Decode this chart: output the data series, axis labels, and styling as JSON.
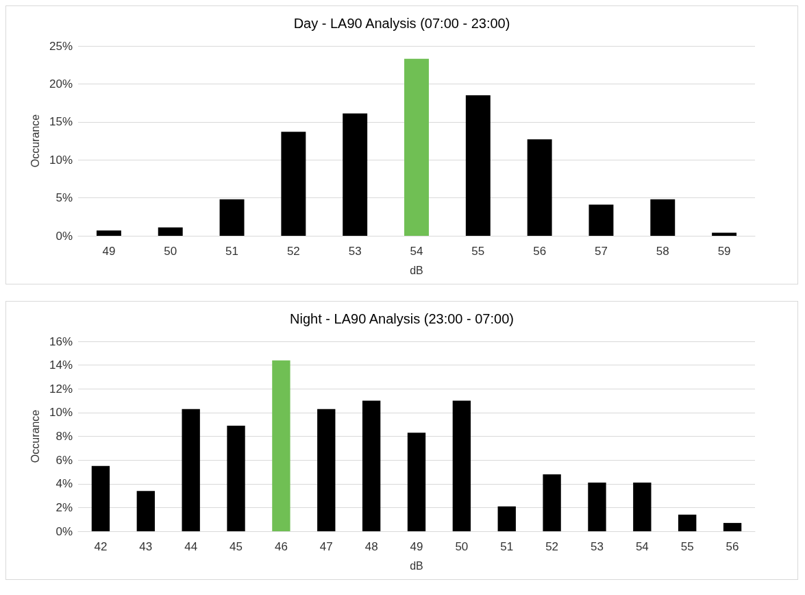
{
  "chart_data": [
    {
      "type": "bar",
      "title": "Day - LA90 Analysis (07:00 - 23:00)",
      "xlabel": "dB",
      "ylabel": "Occurance",
      "categories": [
        "49",
        "50",
        "51",
        "52",
        "53",
        "54",
        "55",
        "56",
        "57",
        "58",
        "59"
      ],
      "values": [
        0.7,
        1.1,
        4.8,
        13.7,
        16.1,
        23.3,
        18.5,
        12.7,
        4.1,
        4.8,
        0.4
      ],
      "colors": [
        "#000000",
        "#000000",
        "#000000",
        "#000000",
        "#000000",
        "#70bf54",
        "#000000",
        "#000000",
        "#000000",
        "#000000",
        "#000000"
      ],
      "ylim": [
        0,
        25
      ],
      "yticks": [
        {
          "value": 0,
          "label": "0%"
        },
        {
          "value": 5,
          "label": "5%"
        },
        {
          "value": 10,
          "label": "10%"
        },
        {
          "value": 15,
          "label": "15%"
        },
        {
          "value": 20,
          "label": "20%"
        },
        {
          "value": 25,
          "label": "25%"
        }
      ],
      "grid": "y"
    },
    {
      "type": "bar",
      "title": "Night - LA90 Analysis (23:00 - 07:00)",
      "xlabel": "dB",
      "ylabel": "Occurance",
      "categories": [
        "42",
        "43",
        "44",
        "45",
        "46",
        "47",
        "48",
        "49",
        "50",
        "51",
        "52",
        "53",
        "54",
        "55",
        "56"
      ],
      "values": [
        5.5,
        3.4,
        10.3,
        8.9,
        14.4,
        10.3,
        11.0,
        8.3,
        11.0,
        2.1,
        4.8,
        4.1,
        4.1,
        1.4,
        0.7
      ],
      "colors": [
        "#000000",
        "#000000",
        "#000000",
        "#000000",
        "#70bf54",
        "#000000",
        "#000000",
        "#000000",
        "#000000",
        "#000000",
        "#000000",
        "#000000",
        "#000000",
        "#000000",
        "#000000"
      ],
      "ylim": [
        0,
        16
      ],
      "yticks": [
        {
          "value": 0,
          "label": "0%"
        },
        {
          "value": 2,
          "label": "2%"
        },
        {
          "value": 4,
          "label": "4%"
        },
        {
          "value": 6,
          "label": "6%"
        },
        {
          "value": 8,
          "label": "8%"
        },
        {
          "value": 10,
          "label": "10%"
        },
        {
          "value": 12,
          "label": "12%"
        },
        {
          "value": 14,
          "label": "14%"
        },
        {
          "value": 16,
          "label": "16%"
        }
      ],
      "grid": "y"
    }
  ]
}
